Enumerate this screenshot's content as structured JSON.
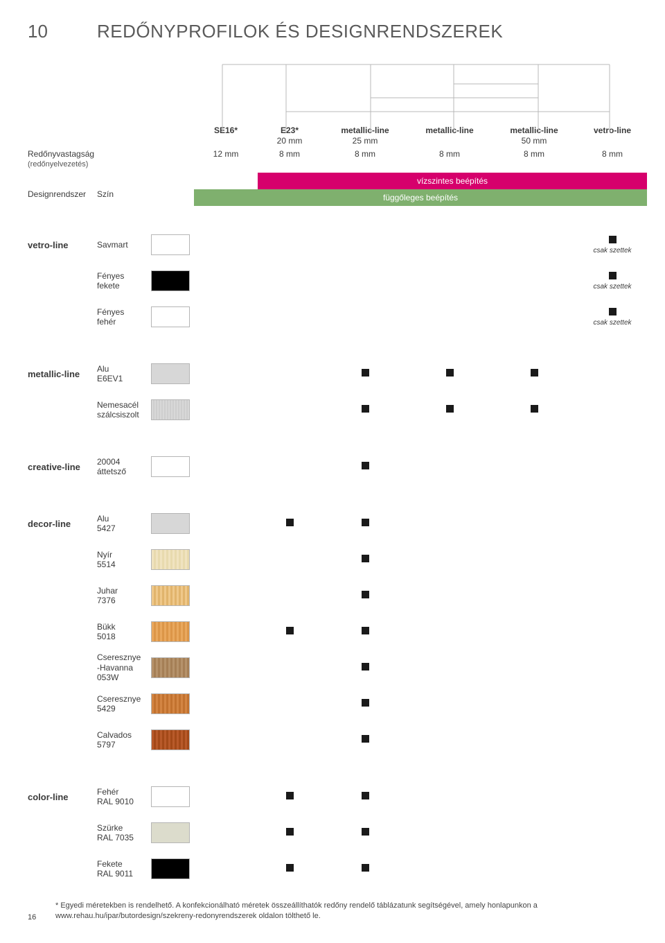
{
  "page_number_top": "10",
  "title": "REDŐNYPROFILOK ÉS DESIGNRENDSZEREK",
  "header": {
    "left": {
      "thickness_label": "Redőnyvastagság",
      "thickness_sub": "(redőnyelvezetés)",
      "system_label": "Designrendszer",
      "color_label": "Szín"
    },
    "profiles": [
      {
        "name": "SE16*",
        "sub": "",
        "mm": "12 mm"
      },
      {
        "name": "E23*",
        "sub": "20 mm",
        "mm": "8 mm"
      },
      {
        "name": "metallic-line",
        "sub": "25 mm",
        "mm": "8 mm"
      },
      {
        "name": "metallic-line",
        "sub": "",
        "mm": "8 mm"
      },
      {
        "name": "metallic-line",
        "sub": "50 mm",
        "mm": "8 mm"
      },
      {
        "name": "vetro-line",
        "sub": "",
        "mm": "8 mm"
      }
    ],
    "bar_horizontal": "vízszintes beépítés",
    "bar_vertical": "függőleges beépítés"
  },
  "notes": {
    "csak_szettek": "csak szettek"
  },
  "groups": [
    {
      "system": "vetro-line",
      "rows": [
        {
          "label_lines": [
            "Savmart"
          ],
          "swatch_css": "background:#ffffff;",
          "marks": [
            0,
            0,
            0,
            0,
            0,
            1
          ],
          "last_note": true
        },
        {
          "label_lines": [
            "Fényes",
            "fekete"
          ],
          "swatch_css": "background:#000000;",
          "marks": [
            0,
            0,
            0,
            0,
            0,
            1
          ],
          "last_note": true
        },
        {
          "label_lines": [
            "Fényes",
            "fehér"
          ],
          "swatch_css": "background:#ffffff;",
          "marks": [
            0,
            0,
            0,
            0,
            0,
            1
          ],
          "last_note": true
        }
      ]
    },
    {
      "system": "metallic-line",
      "rows": [
        {
          "label_lines": [
            "Alu",
            "E6EV1"
          ],
          "swatch_css": "background:#d7d7d7;",
          "marks": [
            0,
            0,
            1,
            1,
            1,
            0
          ]
        },
        {
          "label_lines": [
            "Nemesacél",
            "szálcsiszolt"
          ],
          "swatch_class": "sw-steel",
          "marks": [
            0,
            0,
            1,
            1,
            1,
            0
          ]
        }
      ]
    },
    {
      "system": "creative-line",
      "rows": [
        {
          "label_lines": [
            "20004",
            "áttetsző"
          ],
          "swatch_css": "background:#ffffff;",
          "marks": [
            0,
            0,
            1,
            0,
            0,
            0
          ]
        }
      ]
    },
    {
      "system": "decor-line",
      "rows": [
        {
          "label_lines": [
            "Alu",
            "5427"
          ],
          "swatch_css": "background:#d7d7d7;",
          "marks": [
            0,
            1,
            1,
            0,
            0,
            0
          ]
        },
        {
          "label_lines": [
            "Nyír",
            "5514"
          ],
          "swatch_class": "sw-nyir",
          "marks": [
            0,
            0,
            1,
            0,
            0,
            0
          ]
        },
        {
          "label_lines": [
            "Juhar",
            "7376"
          ],
          "swatch_class": "sw-juhar",
          "marks": [
            0,
            0,
            1,
            0,
            0,
            0
          ]
        },
        {
          "label_lines": [
            "Bükk",
            "5018"
          ],
          "swatch_class": "sw-bukk",
          "marks": [
            0,
            1,
            1,
            0,
            0,
            0
          ]
        },
        {
          "label_lines": [
            "Cseresznye",
            "-Havanna",
            "053W"
          ],
          "swatch_class": "sw-hav",
          "marks": [
            0,
            0,
            1,
            0,
            0,
            0
          ]
        },
        {
          "label_lines": [
            "Cseresznye",
            "5429"
          ],
          "swatch_class": "sw-cher",
          "marks": [
            0,
            0,
            1,
            0,
            0,
            0
          ]
        },
        {
          "label_lines": [
            "Calvados",
            "5797"
          ],
          "swatch_class": "sw-calv",
          "marks": [
            0,
            0,
            1,
            0,
            0,
            0
          ]
        }
      ]
    },
    {
      "system": "color-line",
      "rows": [
        {
          "label_lines": [
            "Fehér",
            "RAL 9010"
          ],
          "swatch_css": "background:#ffffff;",
          "marks": [
            0,
            1,
            1,
            0,
            0,
            0
          ]
        },
        {
          "label_lines": [
            "Szürke",
            "RAL 7035"
          ],
          "swatch_css": "background:#dcdccc;",
          "marks": [
            0,
            1,
            1,
            0,
            0,
            0
          ]
        },
        {
          "label_lines": [
            "Fekete",
            "RAL 9011"
          ],
          "swatch_css": "background:#000000;",
          "marks": [
            0,
            1,
            1,
            0,
            0,
            0
          ]
        }
      ]
    }
  ],
  "footnote": "* Egyedi méretekben is rendelhető. A konfekcionálható méretek összeállíthatók redőny rendelő táblázatunk segítségével, amely honlapunkon a www.rehau.hu/ipar/butordesign/szekreny-redonyrendszerek oldalon tölthető le.",
  "page_number_bottom": "16"
}
